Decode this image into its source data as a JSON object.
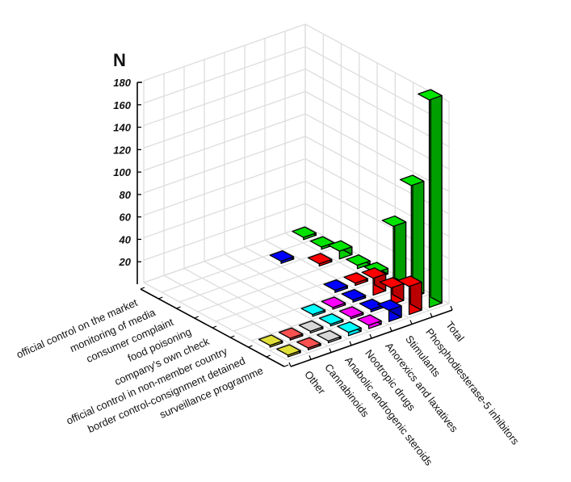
{
  "chart_data": {
    "type": "bar3d",
    "title": "",
    "zlabel": "N",
    "zlim": [
      0,
      180
    ],
    "z_ticks": [
      20,
      40,
      60,
      80,
      100,
      120,
      140,
      160,
      180
    ],
    "grid": true,
    "x_axis_label": "",
    "y_axis_label": "",
    "sources": [
      "official control on the market",
      "monitoring of media",
      "consumer complaint",
      "food poisoning",
      "company's own check",
      "official control in non-member country",
      "border control-consignment detained",
      "surveillance programme"
    ],
    "categories": [
      "Other",
      "Cannabinoids",
      "Anabolic androgenic steroids",
      "Nootropic drugs",
      "Anorexics and laxatives",
      "Stimulants",
      "Phosphodiesterase-5 inhibitors",
      "Total"
    ],
    "series": [
      {
        "name": "Total",
        "color": "#00cc00",
        "values": [
          2,
          2,
          7,
          3,
          5,
          55,
          100,
          185
        ]
      },
      {
        "name": "Phosphodiesterase-5 inhibitors",
        "color": "#ee0000",
        "values": [
          0,
          0,
          2,
          0,
          2,
          15,
          15,
          25
        ]
      },
      {
        "name": "Stimulants",
        "color": "#0000ee",
        "values": [
          0,
          2,
          0,
          0,
          2,
          2,
          2,
          10
        ]
      },
      {
        "name": "Anorexics and laxatives",
        "color": "#ff00ff",
        "values": [
          0,
          0,
          0,
          0,
          0,
          1,
          1,
          3
        ]
      },
      {
        "name": "Nootropic drugs",
        "color": "#00e5ee",
        "values": [
          0,
          0,
          0,
          0,
          0,
          1,
          1,
          3
        ]
      },
      {
        "name": "Anabolic androgenic steroids",
        "color": "#c0c0c0",
        "values": [
          0,
          0,
          0,
          0,
          0,
          0,
          1,
          1
        ]
      },
      {
        "name": "Cannabinoids",
        "color": "#e04848",
        "values": [
          0,
          0,
          0,
          0,
          0,
          0,
          1,
          1
        ]
      },
      {
        "name": "Other",
        "color": "#c8c832",
        "values": [
          0,
          0,
          0,
          0,
          0,
          0,
          1,
          1
        ]
      }
    ]
  }
}
